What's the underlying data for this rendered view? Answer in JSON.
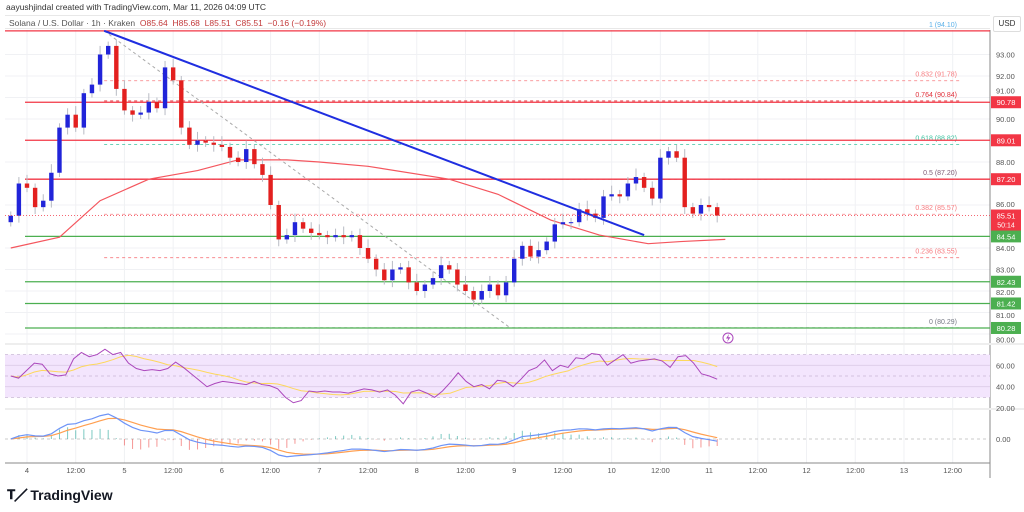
{
  "header": {
    "credit": "aayushjindal created with TradingView.com, Mar 11, 2026 04:09 UTC",
    "symbol": "Solana / U.S. Dollar · 1h · Kraken",
    "open": "O85.64",
    "high": "H85.68",
    "low": "L85.51",
    "close": "C85.51",
    "change": "−0.16 (−0.19%)"
  },
  "currency": "USD",
  "logo": "TradingView",
  "colors": {
    "bull": "#2124d9",
    "bear": "#e3201f",
    "resistance": "#f23645",
    "support": "#4caf50",
    "trendline": "#1f2ee0",
    "moving_average": "#f4565e",
    "rsi": "#ab47bc",
    "rsi_ma": "#fdd85d",
    "rsi_band": "#f3e5fd",
    "macd": "#6e94f7",
    "signal": "#ff9f50",
    "hist_up": "#26a69a",
    "hist_down": "#ef5350"
  },
  "chart_data": {
    "type": "candlestick",
    "x_start": "2026-03-03 20:00",
    "x_step_hours": 2,
    "closes": [
      85.5,
      87.0,
      86.8,
      85.9,
      86.2,
      87.5,
      89.6,
      90.2,
      89.6,
      91.2,
      91.6,
      93.0,
      93.4,
      91.4,
      90.4,
      90.2,
      90.3,
      90.8,
      90.5,
      92.4,
      91.8,
      89.6,
      88.8,
      89.0,
      88.9,
      88.8,
      88.7,
      88.2,
      88.0,
      88.6,
      87.9,
      87.4,
      86.0,
      84.4,
      84.6,
      85.2,
      84.9,
      84.7,
      84.6,
      84.5,
      84.6,
      84.5,
      84.6,
      84.0,
      83.5,
      83.0,
      82.5,
      83.0,
      83.1,
      82.4,
      82.0,
      82.3,
      82.6,
      83.2,
      83.0,
      82.3,
      82.0,
      81.6,
      82.0,
      82.3,
      81.8,
      82.4,
      83.5,
      84.1,
      83.6,
      83.9,
      84.3,
      85.1,
      85.2,
      85.2,
      85.8,
      85.6,
      85.4,
      86.4,
      86.5,
      86.4,
      87.0,
      87.3,
      86.8,
      86.3,
      88.2,
      88.5,
      88.2,
      85.9,
      85.6,
      86.0,
      85.9,
      85.51
    ],
    "moving_average": [
      [
        -4,
        84.0
      ],
      [
        8,
        84.5
      ],
      [
        18,
        86.2
      ],
      [
        30,
        87.2
      ],
      [
        42,
        87.6
      ],
      [
        52,
        88.1
      ],
      [
        64,
        88.1
      ],
      [
        72,
        88.0
      ],
      [
        84,
        87.8
      ],
      [
        104,
        87.2
      ],
      [
        116,
        86.5
      ],
      [
        129,
        85.3
      ],
      [
        141,
        84.6
      ],
      [
        153,
        84.2
      ],
      [
        161,
        84.3
      ],
      [
        172,
        84.4
      ]
    ],
    "y_axis_ticks": [
      "93.00",
      "92.00",
      "91.00",
      "90.00",
      "88.00",
      "86.00",
      "84.00",
      "83.00",
      "82.00",
      "81.00",
      "80.00"
    ],
    "x_axis_ticks": [
      "4",
      "12:00",
      "5",
      "12:00",
      "6",
      "12:00",
      "7",
      "12:00",
      "8",
      "12:00",
      "9",
      "12:00",
      "10",
      "12:00",
      "11",
      "12:00",
      "12",
      "12:00",
      "13",
      "12:00"
    ],
    "horizontal_levels": [
      {
        "price": 94.1,
        "kind": "resistance",
        "label": ""
      },
      {
        "price": 90.78,
        "kind": "resistance",
        "label": "90.78"
      },
      {
        "price": 89.01,
        "kind": "resistance",
        "label": "89.01"
      },
      {
        "price": 87.2,
        "kind": "resistance",
        "label": "87.20"
      },
      {
        "price": 84.54,
        "kind": "support",
        "label": "84.54"
      },
      {
        "price": 82.43,
        "kind": "support",
        "label": "82.43"
      },
      {
        "price": 81.42,
        "kind": "support",
        "label": "81.42"
      },
      {
        "price": 80.28,
        "kind": "support",
        "label": "80.28"
      }
    ],
    "fibonacci": [
      {
        "label": "1 (94.10)",
        "price": 94.1,
        "color": "#5ab0e8"
      },
      {
        "label": "0.832 (91.78)",
        "price": 91.78,
        "color": "#f77c80"
      },
      {
        "label": "0.764 (90.84)",
        "price": 90.84,
        "color": "#e0303a"
      },
      {
        "label": "0.618 (88.82)",
        "price": 88.82,
        "color": "#3cc3a0"
      },
      {
        "label": "0.5 (87.20)",
        "price": 87.2,
        "color": "#7e5a74"
      },
      {
        "label": "0.382 (85.57)",
        "price": 85.57,
        "color": "#f77c80"
      },
      {
        "label": "0.236 (83.55)",
        "price": 83.55,
        "color": "#f77c80"
      },
      {
        "label": "0 (80.29)",
        "price": 80.29,
        "color": "#787b86"
      }
    ],
    "trendline": {
      "from": [
        19,
        94.1
      ],
      "to": [
        152,
        84.6
      ]
    },
    "fib_diagonal": {
      "from": [
        19,
        94.1
      ],
      "to": [
        119,
        80.29
      ]
    },
    "current_price": {
      "label": "85.51",
      "countdown": "50:14",
      "price": 85.51
    },
    "rsi": {
      "values": [
        50,
        48,
        55,
        62,
        61,
        52,
        50,
        51,
        66,
        72,
        68,
        70,
        75,
        70,
        72,
        62,
        57,
        55,
        56,
        55,
        57,
        63,
        58,
        52,
        46,
        40,
        43,
        45,
        44,
        43,
        42,
        45,
        42,
        41,
        38,
        30,
        25,
        27,
        36,
        35,
        36,
        35,
        35,
        34,
        36,
        38,
        37,
        35,
        37,
        32,
        24,
        35,
        37,
        34,
        30,
        36,
        44,
        53,
        45,
        40,
        42,
        38,
        46,
        45,
        40,
        47,
        55,
        58,
        65,
        55,
        60,
        58,
        67,
        66,
        71,
        70,
        60,
        65,
        70,
        62,
        64,
        65,
        66,
        64,
        58,
        68,
        69,
        62,
        52,
        50,
        47
      ],
      "band": [
        30,
        70
      ],
      "ticks": [
        "60.00",
        "40.00",
        "20.00"
      ]
    },
    "macd": {
      "ticks": [
        "0.00"
      ]
    }
  }
}
